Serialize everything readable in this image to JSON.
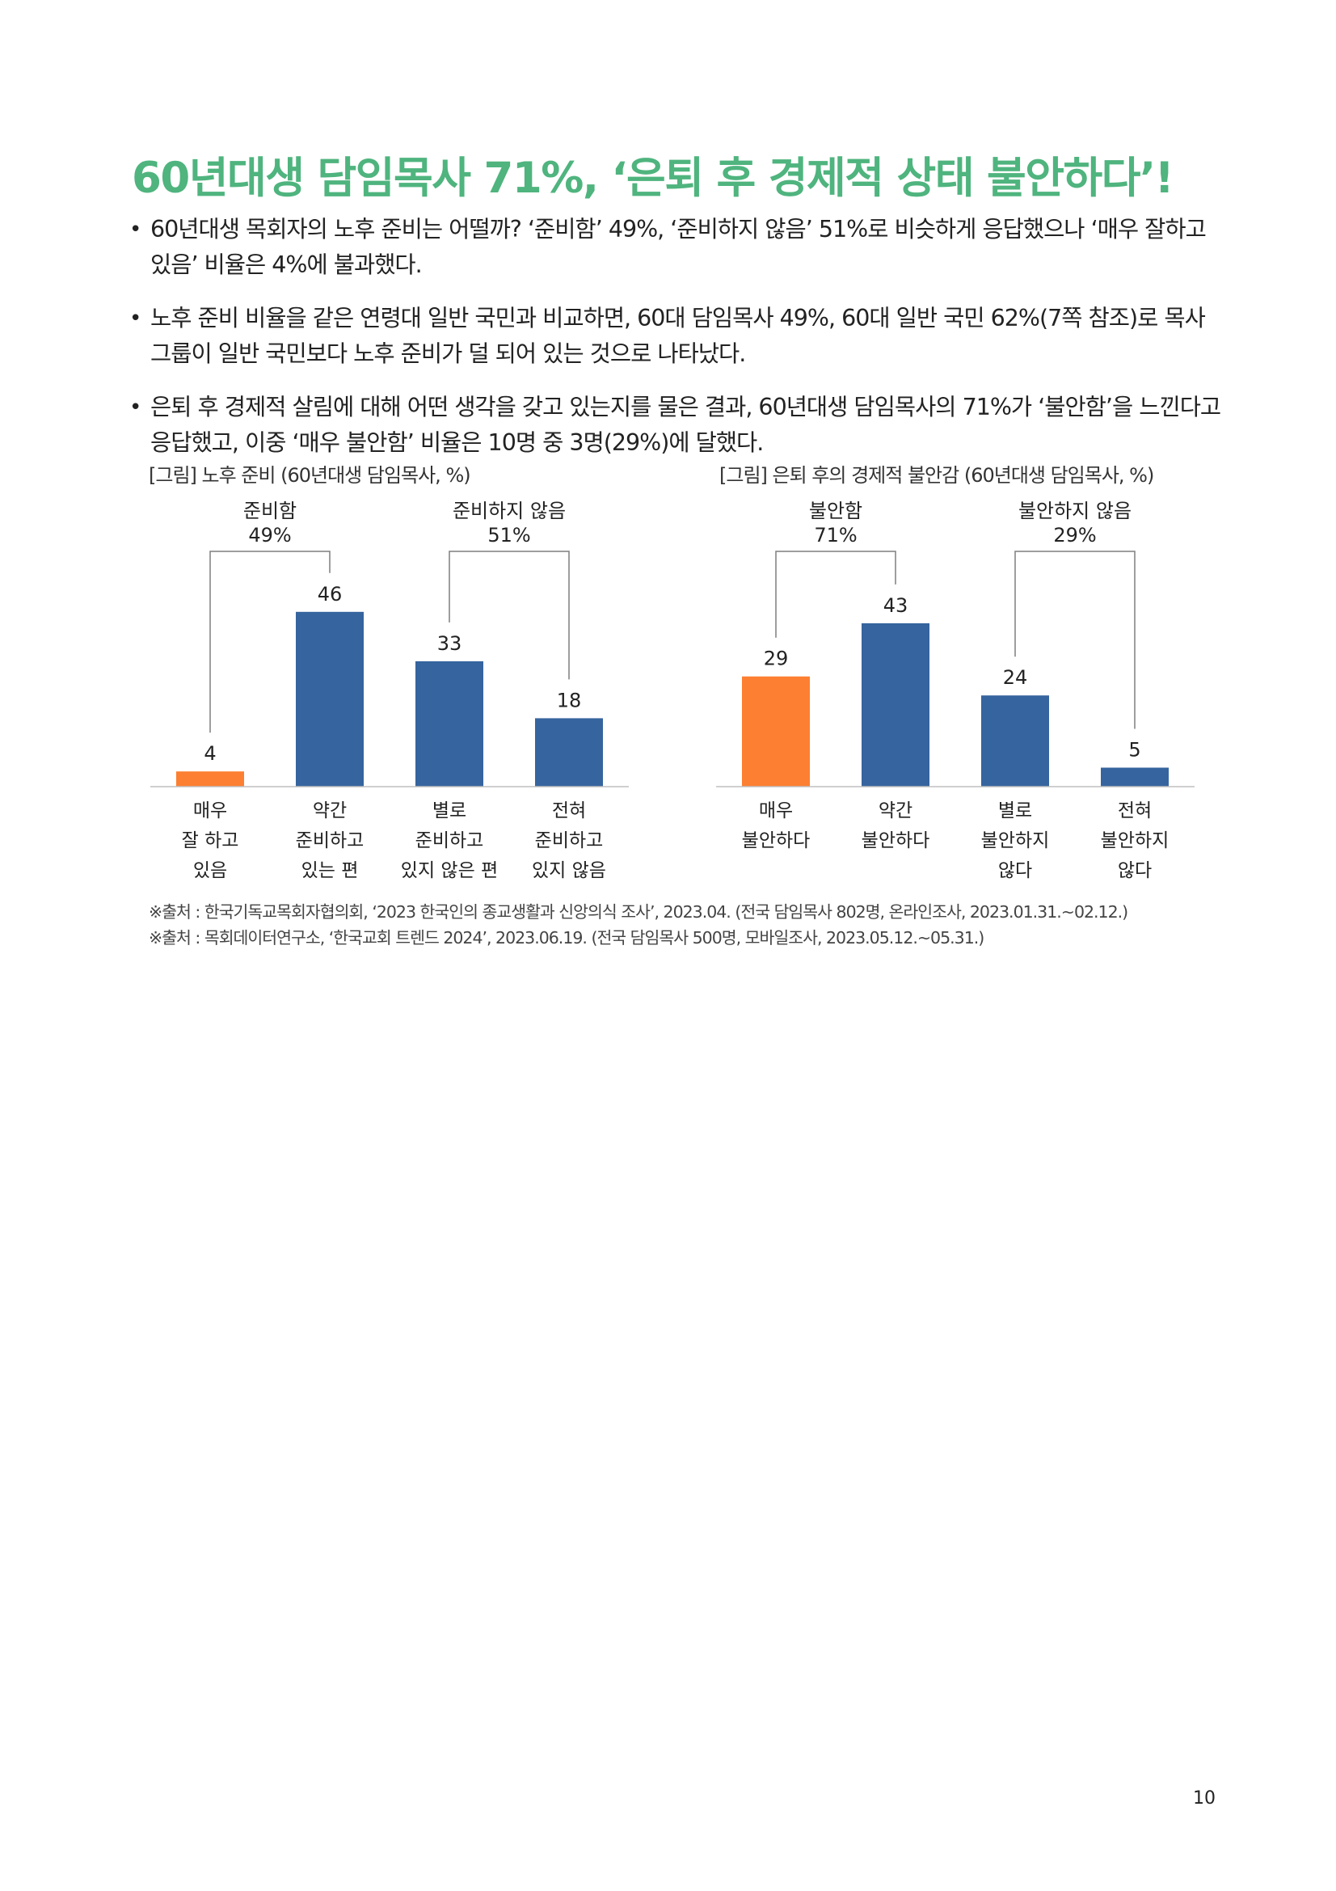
{
  "title": "60년대생 담임목사 71%, ‘은퇴 후 경제적 상태 불안하다’!",
  "bullets": [
    "60년대생 목회자의 노후 준비는 어떨까? ‘준비함’ 49%, ‘준비하지 않음’ 51%로 비슷하게 응답했으나 ‘매우 잘하고 있음’ 비율은 4%에 불과했다.",
    "노후 준비 비율을 같은 연령대 일반 국민과 비교하면, 60대 담임목사 49%, 60대 일반 국민 62%(7쪽 참조)로 목사 그룹이 일반 국민보다 노후 준비가 덜 되어 있는 것으로 나타났다.",
    "은퇴 후 경제적 살림에 대해 어떤 생각을 갖고 있는지를 물은 결과, 60년대생 담임목사의 71%가 ‘불안함’을 느낀다고 응답했고, 이중 ‘매우 불안함’ 비율은 10명 중 3명(29%)에 달했다."
  ],
  "colors": {
    "title": "#4fb47e",
    "highlight": "#fd7f31",
    "bar": "#36649e",
    "axis": "#bfbfbf",
    "bracket": "#7f7f7f"
  },
  "chart_data": [
    {
      "type": "bar",
      "title": "[그림] 노후 준비 (60년대생 담임목사, %)",
      "categories": [
        [
          "매우",
          "잘 하고",
          "있음"
        ],
        [
          "약간",
          "준비하고",
          "있는 편"
        ],
        [
          "별로",
          "준비하고",
          "있지 않은 편"
        ],
        [
          "전혀",
          "준비하고",
          "있지 않음"
        ]
      ],
      "values": [
        4,
        46,
        33,
        18
      ],
      "highlight_index": 0,
      "groups": [
        {
          "label": "준비함",
          "value_label": "49%",
          "bars": [
            0,
            1
          ]
        },
        {
          "label": "준비하지 않음",
          "value_label": "51%",
          "bars": [
            2,
            3
          ]
        }
      ],
      "ylim": [
        0,
        60
      ],
      "grid": false,
      "xlabel": "",
      "ylabel": ""
    },
    {
      "type": "bar",
      "title": "[그림] 은퇴 후의 경제적 불안감 (60년대생 담임목사, %)",
      "categories": [
        [
          "매우",
          "불안하다"
        ],
        [
          "약간",
          "불안하다"
        ],
        [
          "별로",
          "불안하지",
          "않다"
        ],
        [
          "전혀",
          "불안하지",
          "않다"
        ]
      ],
      "values": [
        29,
        43,
        24,
        5
      ],
      "highlight_index": 0,
      "groups": [
        {
          "label": "불안함",
          "value_label": "71%",
          "bars": [
            0,
            1
          ]
        },
        {
          "label": "불안하지 않음",
          "value_label": "29%",
          "bars": [
            2,
            3
          ]
        }
      ],
      "ylim": [
        0,
        60
      ],
      "grid": false,
      "xlabel": "",
      "ylabel": ""
    }
  ],
  "sources": [
    "※출처 : 한국기독교목회자협의회, ‘2023 한국인의 종교생활과 신앙의식 조사’, 2023.04. (전국 담임목사 802명, 온라인조사, 2023.01.31.~02.12.)",
    "※출처 : 목회데이터연구소, ‘한국교회 트렌드 2024’, 2023.06.19. (전국 담임목사 500명, 모바일조사, 2023.05.12.~05.31.)"
  ],
  "page_number": "10"
}
